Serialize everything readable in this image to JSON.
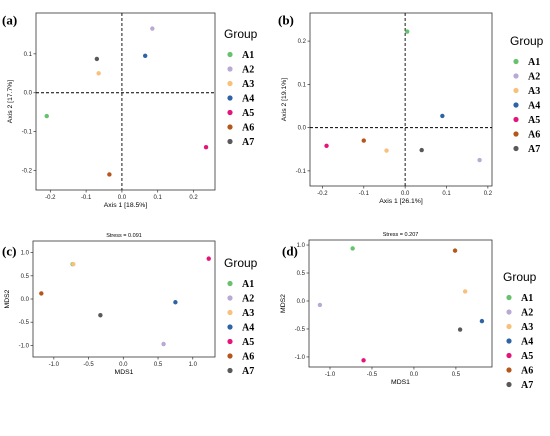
{
  "legend": {
    "title": "Group",
    "groups": [
      "A1",
      "A2",
      "A3",
      "A4",
      "A5",
      "A6",
      "A7"
    ],
    "colors": [
      "#66c26e",
      "#b9a9d3",
      "#f8c07a",
      "#2e64a3",
      "#e6137a",
      "#b5561c",
      "#595959"
    ]
  },
  "chart_data": [
    {
      "panel_label": "(a)",
      "type": "scatter",
      "title": "",
      "xlabel": "Axis 1 [18.5%]",
      "ylabel": "Axis 2 [17.7%]",
      "xlim": [
        -0.24,
        0.26
      ],
      "ylim": [
        -0.25,
        0.205
      ],
      "xticks": [
        -0.2,
        -0.1,
        0.0,
        0.1,
        0.2
      ],
      "xtick_labels": [
        "-0.2",
        "-0.1",
        "0.0",
        "0.1",
        "0.2"
      ],
      "yticks": [
        -0.2,
        -0.1,
        0.0,
        0.1
      ],
      "ytick_labels": [
        "-0.2",
        "-0.1",
        "0.0",
        "0.1"
      ],
      "zero_lines": true,
      "legend_position": "right",
      "grid": false,
      "points": [
        {
          "group": "A1",
          "x": -0.21,
          "y": -0.06
        },
        {
          "group": "A2",
          "x": 0.085,
          "y": 0.165
        },
        {
          "group": "A3",
          "x": -0.065,
          "y": 0.05
        },
        {
          "group": "A4",
          "x": 0.065,
          "y": 0.095
        },
        {
          "group": "A5",
          "x": 0.235,
          "y": -0.14
        },
        {
          "group": "A6",
          "x": -0.035,
          "y": -0.21
        },
        {
          "group": "A7",
          "x": -0.07,
          "y": 0.087
        }
      ]
    },
    {
      "panel_label": "(b)",
      "type": "scatter",
      "title": "",
      "xlabel": "Axis 1 [26.1%]",
      "ylabel": "Axis 2 [19.1%]",
      "xlim": [
        -0.23,
        0.21
      ],
      "ylim": [
        -0.135,
        0.265
      ],
      "xticks": [
        -0.2,
        -0.1,
        0.0,
        0.1,
        0.2
      ],
      "xtick_labels": [
        "-0.2",
        "-0.1",
        "0.0",
        "0.1",
        "0.2"
      ],
      "yticks": [
        -0.1,
        0.0,
        0.1,
        0.2
      ],
      "ytick_labels": [
        "-0.1",
        "0.0",
        "0.1",
        "0.2"
      ],
      "zero_lines": true,
      "legend_position": "right",
      "grid": false,
      "points": [
        {
          "group": "A1",
          "x": 0.005,
          "y": 0.222
        },
        {
          "group": "A2",
          "x": 0.18,
          "y": -0.075
        },
        {
          "group": "A3",
          "x": -0.045,
          "y": -0.053
        },
        {
          "group": "A4",
          "x": 0.09,
          "y": 0.027
        },
        {
          "group": "A5",
          "x": -0.19,
          "y": -0.042
        },
        {
          "group": "A6",
          "x": -0.1,
          "y": -0.03
        },
        {
          "group": "A7",
          "x": 0.04,
          "y": -0.052
        }
      ]
    },
    {
      "panel_label": "(c)",
      "type": "scatter",
      "title": "Stress = 0.091",
      "xlabel": "MDS1",
      "ylabel": "MDS2",
      "xlim": [
        -1.3,
        1.32
      ],
      "ylim": [
        -1.25,
        1.25
      ],
      "xticks": [
        -1.0,
        -0.5,
        0.0,
        0.5,
        1.0
      ],
      "xtick_labels": [
        "-1.0",
        "-0.5",
        "0.0",
        "0.5",
        "1.0"
      ],
      "yticks": [
        -1.0,
        -0.5,
        0.0,
        0.5,
        1.0
      ],
      "ytick_labels": [
        "-1.0",
        "-0.5",
        "0.0",
        "0.5",
        "1.0"
      ],
      "zero_lines": false,
      "legend_position": "right",
      "grid": false,
      "points": [
        {
          "group": "A1",
          "x": -0.73,
          "y": 0.75
        },
        {
          "group": "A2",
          "x": 0.58,
          "y": -0.97
        },
        {
          "group": "A3",
          "x": -0.72,
          "y": 0.75
        },
        {
          "group": "A4",
          "x": 0.75,
          "y": -0.07
        },
        {
          "group": "A5",
          "x": 1.23,
          "y": 0.87
        },
        {
          "group": "A6",
          "x": -1.18,
          "y": 0.12
        },
        {
          "group": "A7",
          "x": -0.33,
          "y": -0.35
        }
      ]
    },
    {
      "panel_label": "(d)",
      "type": "scatter",
      "title": "Stress = 0.207",
      "xlabel": "MDS1",
      "ylabel": "MDS2",
      "xlim": [
        -1.25,
        0.93
      ],
      "ylim": [
        -1.18,
        1.09
      ],
      "xticks": [
        -1.0,
        -0.5,
        0.0,
        0.5
      ],
      "xtick_labels": [
        "-1.0",
        "-0.5",
        "0.0",
        "0.5"
      ],
      "yticks": [
        -1.0,
        -0.5,
        0.0,
        0.5,
        1.0
      ],
      "ytick_labels": [
        "-1.0",
        "-0.5",
        "0.0",
        "0.5",
        "1.0"
      ],
      "zero_lines": false,
      "legend_position": "right",
      "grid": false,
      "points": [
        {
          "group": "A1",
          "x": -0.73,
          "y": 0.94
        },
        {
          "group": "A2",
          "x": -1.12,
          "y": -0.07
        },
        {
          "group": "A3",
          "x": 0.61,
          "y": 0.17
        },
        {
          "group": "A4",
          "x": 0.81,
          "y": -0.36
        },
        {
          "group": "A5",
          "x": -0.6,
          "y": -1.06
        },
        {
          "group": "A6",
          "x": 0.49,
          "y": 0.9
        },
        {
          "group": "A7",
          "x": 0.55,
          "y": -0.51
        }
      ]
    }
  ]
}
